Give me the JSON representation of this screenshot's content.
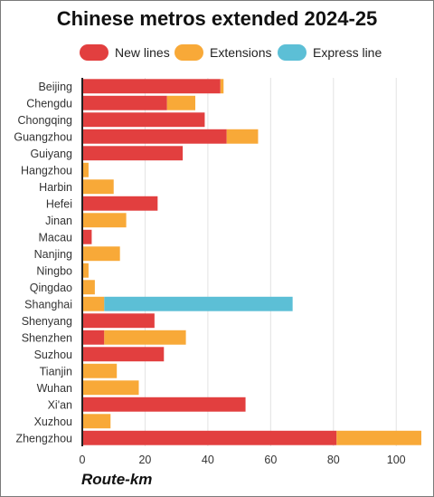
{
  "chart_data": {
    "type": "bar",
    "orientation": "horizontal",
    "stacked": true,
    "title": "Chinese metros extended 2024-25",
    "xlabel": "Route-km",
    "ylabel": "",
    "xlim": [
      0,
      108
    ],
    "xticks": [
      0,
      20,
      40,
      60,
      80,
      100
    ],
    "grid": "vertical",
    "legend_position": "top",
    "categories": [
      "Beijing",
      "Chengdu",
      "Chongqing",
      "Guangzhou",
      "Guiyang",
      "Hangzhou",
      "Harbin",
      "Hefei",
      "Jinan",
      "Macau",
      "Nanjing",
      "Ningbo",
      "Qingdao",
      "Shanghai",
      "Shenyang",
      "Shenzhen",
      "Suzhou",
      "Tianjin",
      "Wuhan",
      "Xi'an",
      "Xuzhou",
      "Zhengzhou"
    ],
    "series": [
      {
        "name": "New lines",
        "color": "#e23f3f",
        "values": [
          44,
          27,
          39,
          46,
          32,
          0,
          0,
          24,
          0,
          3,
          0,
          0,
          0,
          0,
          23,
          7,
          26,
          0,
          0,
          52,
          0,
          81
        ]
      },
      {
        "name": "Extensions",
        "color": "#f8a938",
        "values": [
          1,
          9,
          0,
          10,
          0,
          2,
          10,
          0,
          14,
          0,
          12,
          2,
          4,
          7,
          0,
          26,
          0,
          11,
          18,
          0,
          9,
          27
        ]
      },
      {
        "name": "Express line",
        "color": "#5cbfd6",
        "values": [
          0,
          0,
          0,
          0,
          0,
          0,
          0,
          0,
          0,
          0,
          0,
          0,
          0,
          60,
          0,
          0,
          0,
          0,
          0,
          0,
          0,
          0
        ]
      }
    ]
  }
}
